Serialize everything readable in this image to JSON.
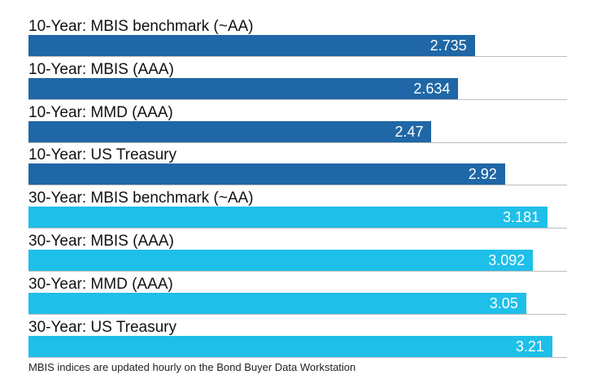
{
  "chart_data": {
    "type": "bar",
    "orientation": "horizontal",
    "categories": [
      "10-Year: MBIS benchmark (~AA)",
      "10-Year: MBIS (AAA)",
      "10-Year: MMD (AAA)",
      "10-Year: US Treasury",
      "30-Year: MBIS benchmark (~AA)",
      "30-Year: MBIS (AAA)",
      "30-Year: MMD (AAA)",
      "30-Year: US Treasury"
    ],
    "values": [
      2.735,
      2.634,
      2.47,
      2.92,
      3.181,
      3.092,
      3.05,
      3.21
    ],
    "value_labels": [
      "2.735",
      "2.634",
      "2.47",
      "2.92",
      "3.181",
      "3.092",
      "3.05",
      "3.21"
    ],
    "bar_colors": [
      "#1f67a6",
      "#1f67a6",
      "#1f67a6",
      "#1f67a6",
      "#1ebfe8",
      "#1ebfe8",
      "#1ebfe8",
      "#1ebfe8"
    ],
    "title": "",
    "xlabel": "",
    "ylabel": "",
    "xlim": [
      0,
      3.3
    ],
    "grid": false,
    "legend": "none"
  },
  "footnote": "MBIS indices are updated hourly on the Bond Buyer Data Workstation"
}
